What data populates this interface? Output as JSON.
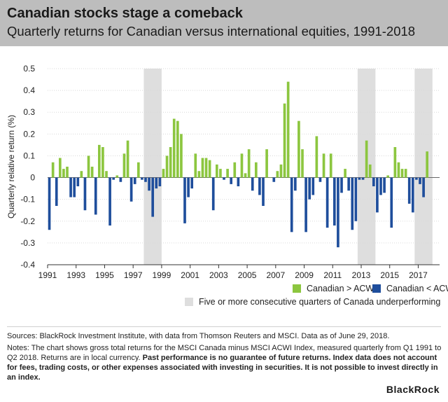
{
  "header": {
    "title": "Canadian stocks stage a comeback",
    "subtitle": "Quarterly returns for Canadian versus international equities, 1991-2018"
  },
  "legend": {
    "above": "Canadian > ACWI",
    "below": "Canadian < ACWI",
    "shade": "Five or more consecutive quarters of Canada underperforming"
  },
  "footer": {
    "sources": "Sources: BlackRock Investment Institute, with data from Thomson Reuters and MSCI. Data as of June 29, 2018.",
    "notes_plain": "Notes: The chart shows gross total returns for the MSCI Canada minus MSCI ACWI Index, measured quarterly from Q1 1991 to Q2 2018. Returns are in local currency. ",
    "notes_bold": "Past performance is no guarantee of future returns. Index data does not account for fees, trading costs, or other expenses associated with investing in securities. It is not possible to invest directly in an index.",
    "logo": "BlackRock"
  },
  "colors": {
    "above": "#8cc63f",
    "below": "#1f4e9c",
    "shade": "#dedede",
    "header_bg": "#bdbdbd"
  },
  "chart_data": {
    "type": "bar",
    "ylabel": "Quarterly relative return (%)",
    "ylim": [
      -0.4,
      0.5
    ],
    "yticks": [
      -0.4,
      -0.3,
      -0.2,
      -0.1,
      0,
      0.1,
      0.2,
      0.3,
      0.4,
      0.5
    ],
    "ytick_labels": [
      "-0.4",
      "-0.3",
      "-0.2",
      "-0.1",
      "0",
      "0.1",
      "0.2",
      "0.3",
      "0.4",
      "0.5"
    ],
    "xlim": [
      1991,
      2018.5
    ],
    "xticks": [
      1991,
      1993,
      1995,
      1997,
      1999,
      2001,
      2003,
      2005,
      2007,
      2009,
      2011,
      2013,
      2015,
      2017
    ],
    "xtick_labels": [
      "1991",
      "1993",
      "1995",
      "1997",
      "1999",
      "2001",
      "2003",
      "2005",
      "2007",
      "2009",
      "2011",
      "2013",
      "2015",
      "2017"
    ],
    "grid": "horizontal",
    "legend_position": "bottom-right",
    "shaded_periods": [
      [
        1997.75,
        1999.0
      ],
      [
        2012.75,
        2014.0
      ],
      [
        2016.75,
        2018.0
      ]
    ],
    "series": [
      {
        "name": "Canadian minus ACWI",
        "start": "1991 Q1",
        "values": [
          -0.24,
          0.07,
          -0.13,
          0.09,
          0.04,
          0.05,
          -0.09,
          -0.09,
          -0.04,
          0.03,
          -0.15,
          0.1,
          0.05,
          -0.17,
          0.15,
          0.14,
          0.03,
          -0.22,
          -0.01,
          0.01,
          -0.02,
          0.11,
          0.17,
          -0.11,
          -0.03,
          0.07,
          -0.01,
          -0.02,
          -0.06,
          -0.18,
          -0.05,
          -0.04,
          0.04,
          0.1,
          0.14,
          0.27,
          0.26,
          0.2,
          -0.21,
          -0.09,
          -0.05,
          0.11,
          0.03,
          0.09,
          0.09,
          0.08,
          -0.15,
          0.06,
          0.04,
          -0.01,
          0.04,
          -0.03,
          0.07,
          -0.04,
          0.11,
          0.02,
          0.13,
          -0.06,
          0.07,
          -0.08,
          -0.13,
          0.13,
          0.0,
          -0.02,
          0.03,
          0.06,
          0.34,
          0.44,
          -0.25,
          -0.06,
          0.26,
          0.13,
          -0.25,
          -0.1,
          -0.08,
          0.19,
          -0.02,
          0.11,
          -0.23,
          0.11,
          -0.22,
          -0.32,
          -0.07,
          0.04,
          -0.06,
          -0.24,
          -0.2,
          -0.01,
          -0.01,
          0.17,
          0.06,
          -0.04,
          -0.16,
          -0.08,
          -0.07,
          0.01,
          -0.23,
          0.14,
          0.07,
          0.04,
          0.04,
          -0.12,
          -0.16,
          -0.01,
          -0.03,
          -0.09,
          0.12
        ]
      }
    ]
  }
}
